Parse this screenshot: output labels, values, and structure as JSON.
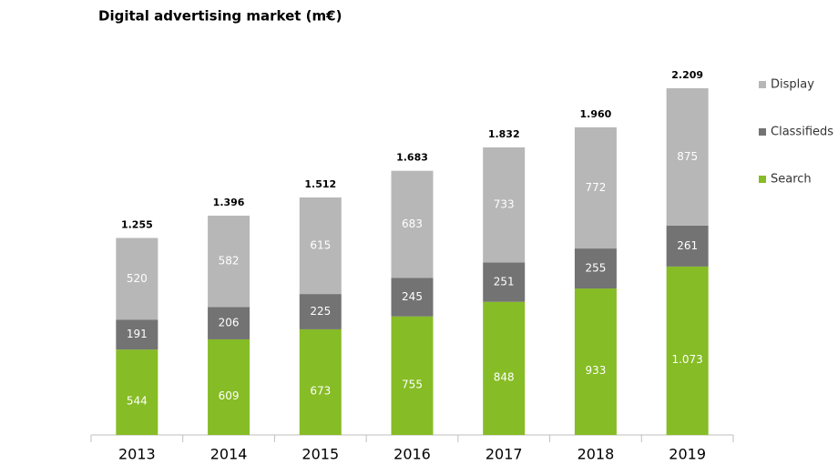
{
  "chart_data": {
    "type": "stacked-bar",
    "title": "Digital advertising market (m€)",
    "categories": [
      "2013",
      "2014",
      "2015",
      "2016",
      "2017",
      "2018",
      "2019"
    ],
    "series": [
      {
        "name": "Search",
        "color": "#86bc25",
        "values": [
          544,
          609,
          673,
          755,
          848,
          933,
          1073
        ],
        "value_labels": [
          "544",
          "609",
          "673",
          "755",
          "848",
          "933",
          "1.073"
        ]
      },
      {
        "name": "Classifieds",
        "color": "#737373",
        "values": [
          191,
          206,
          225,
          245,
          251,
          255,
          261
        ]
      },
      {
        "name": "Display",
        "color": "#b7b7b7",
        "values": [
          520,
          582,
          615,
          683,
          733,
          772,
          875
        ]
      }
    ],
    "totals": {
      "values": [
        1255,
        1396,
        1512,
        1683,
        1832,
        1960,
        2209
      ],
      "value_labels": [
        "1.255",
        "1.396",
        "1.512",
        "1.683",
        "1.832",
        "1.960",
        "2.209"
      ]
    },
    "ylim": [
      0,
      2400
    ],
    "legend": "right"
  }
}
